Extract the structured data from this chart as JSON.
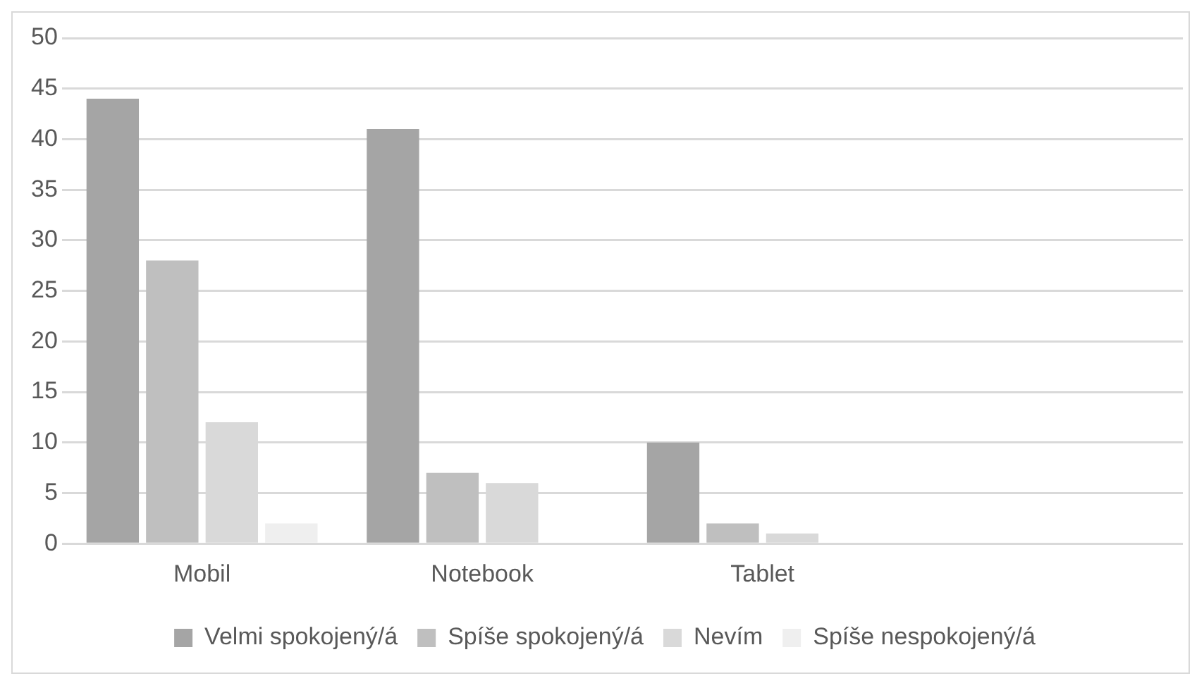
{
  "chart_data": {
    "type": "bar",
    "categories": [
      "Mobil",
      "Notebook",
      "Tablet",
      null
    ],
    "series": [
      {
        "name": "Velmi spokojený/á",
        "color": "#a5a5a5",
        "values": [
          44,
          41,
          10,
          null
        ]
      },
      {
        "name": "Spíše spokojený/á",
        "color": "#bfbfbf",
        "values": [
          28,
          7,
          2,
          null
        ]
      },
      {
        "name": "Nevím",
        "color": "#d9d9d9",
        "values": [
          12,
          6,
          1,
          null
        ]
      },
      {
        "name": "Spíše nespokojený/á",
        "color": "#efefef",
        "values": [
          2,
          0,
          0,
          null
        ]
      }
    ],
    "ylim": [
      0,
      50
    ],
    "yticks": [
      0,
      5,
      10,
      15,
      20,
      25,
      30,
      35,
      40,
      45,
      50
    ],
    "grid": "y",
    "legend": "bottom"
  }
}
